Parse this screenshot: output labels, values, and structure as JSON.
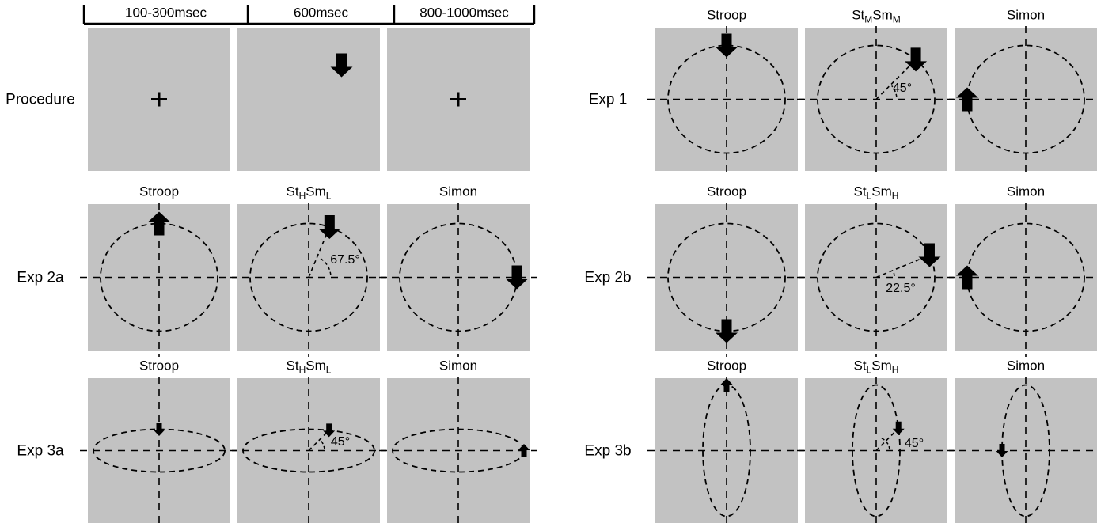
{
  "colors": {
    "panel_bg": "#c2c2c2",
    "ink": "#000000",
    "background": "#ffffff"
  },
  "timing_header": {
    "labels": [
      "100-300msec",
      "600msec",
      "800-1000msec"
    ]
  },
  "groups": [
    {
      "rows": [
        {
          "label": "Procedure",
          "kind": "procedure",
          "panels": [
            {
              "content": "fixation-cross"
            },
            {
              "content": "down-arrow-stimulus"
            },
            {
              "content": "fixation-cross"
            }
          ]
        },
        {
          "label": "Exp 2a",
          "kind": "conditions",
          "panels": [
            {
              "title": [
                {
                  "t": "Stroop"
                }
              ],
              "shape": "circle",
              "marker": {
                "dir": "up",
                "anchor": "top",
                "size": "large"
              }
            },
            {
              "title": [
                {
                  "t": "St"
                },
                {
                  "t": "H",
                  "sub": true
                },
                {
                  "t": "Sm"
                },
                {
                  "t": "L",
                  "sub": true
                }
              ],
              "shape": "circle",
              "marker": {
                "dir": "down",
                "anchor": "angle",
                "size": "large"
              },
              "angle": 67.5,
              "angle_label": "67.5°"
            },
            {
              "title": [
                {
                  "t": "Simon"
                }
              ],
              "shape": "circle",
              "marker": {
                "dir": "down",
                "anchor": "right",
                "size": "large"
              }
            }
          ]
        },
        {
          "label": "Exp 3a",
          "kind": "conditions",
          "panels": [
            {
              "title": [
                {
                  "t": "Stroop"
                }
              ],
              "shape": "hellipse",
              "marker": {
                "dir": "down",
                "anchor": "top",
                "size": "small"
              }
            },
            {
              "title": [
                {
                  "t": "St"
                },
                {
                  "t": "H",
                  "sub": true
                },
                {
                  "t": "Sm"
                },
                {
                  "t": "L",
                  "sub": true
                }
              ],
              "shape": "hellipse",
              "marker": {
                "dir": "down",
                "anchor": "angle",
                "size": "small"
              },
              "angle": 45,
              "angle_label": "45°"
            },
            {
              "title": [
                {
                  "t": "Simon"
                }
              ],
              "shape": "hellipse",
              "marker": {
                "dir": "up",
                "anchor": "right",
                "size": "small"
              }
            }
          ]
        }
      ]
    },
    {
      "rows": [
        {
          "label": "Exp 1",
          "kind": "conditions",
          "panels": [
            {
              "title": [
                {
                  "t": "Stroop"
                }
              ],
              "shape": "circle",
              "marker": {
                "dir": "down",
                "anchor": "top",
                "size": "large"
              }
            },
            {
              "title": [
                {
                  "t": "St"
                },
                {
                  "t": "M",
                  "sub": true
                },
                {
                  "t": "Sm"
                },
                {
                  "t": "M",
                  "sub": true
                }
              ],
              "shape": "circle",
              "marker": {
                "dir": "down",
                "anchor": "angle",
                "size": "large"
              },
              "angle": 45,
              "angle_label": "45°"
            },
            {
              "title": [
                {
                  "t": "Simon"
                }
              ],
              "shape": "circle",
              "marker": {
                "dir": "up",
                "anchor": "left",
                "size": "large"
              }
            }
          ]
        },
        {
          "label": "Exp 2b",
          "kind": "conditions",
          "panels": [
            {
              "title": [
                {
                  "t": "Stroop"
                }
              ],
              "shape": "circle",
              "marker": {
                "dir": "down",
                "anchor": "bottom",
                "size": "large"
              }
            },
            {
              "title": [
                {
                  "t": "St"
                },
                {
                  "t": "L",
                  "sub": true
                },
                {
                  "t": "Sm"
                },
                {
                  "t": "H",
                  "sub": true
                }
              ],
              "shape": "circle",
              "marker": {
                "dir": "down",
                "anchor": "angle",
                "size": "large"
              },
              "angle": 22.5,
              "angle_label": "22.5°"
            },
            {
              "title": [
                {
                  "t": "Simon"
                }
              ],
              "shape": "circle",
              "marker": {
                "dir": "up",
                "anchor": "left",
                "size": "large"
              }
            }
          ]
        },
        {
          "label": "Exp 3b",
          "kind": "conditions",
          "panels": [
            {
              "title": [
                {
                  "t": "Stroop"
                }
              ],
              "shape": "vellipse",
              "marker": {
                "dir": "up",
                "anchor": "top",
                "size": "small"
              }
            },
            {
              "title": [
                {
                  "t": "St"
                },
                {
                  "t": "L",
                  "sub": true
                },
                {
                  "t": "Sm"
                },
                {
                  "t": "H",
                  "sub": true
                }
              ],
              "shape": "vellipse",
              "marker": {
                "dir": "down",
                "anchor": "angle",
                "size": "small"
              },
              "angle": 45,
              "angle_label": "45°"
            },
            {
              "title": [
                {
                  "t": "Simon"
                }
              ],
              "shape": "vellipse",
              "marker": {
                "dir": "down",
                "anchor": "left",
                "size": "small"
              }
            }
          ]
        }
      ]
    }
  ]
}
